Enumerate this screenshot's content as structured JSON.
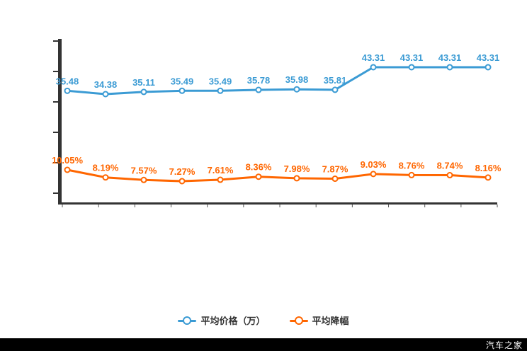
{
  "watermark": {
    "brand": "汽车之家"
  },
  "legend": [
    {
      "label": "平均价格（万）",
      "color": "#3b9bd4"
    },
    {
      "label": "平均降幅",
      "color": "#ff6600"
    }
  ],
  "chart_data": {
    "type": "line",
    "title": "",
    "xlabel": "",
    "ylabel": "",
    "x_point_count": 12,
    "x_tick_labels": [
      "",
      "",
      "",
      "",
      "",
      "",
      "",
      "",
      "",
      "",
      "",
      ""
    ],
    "grid": false,
    "legend_position": "bottom",
    "axis_color": "#333333",
    "series": [
      {
        "name": "平均价格（万）",
        "color": "#3b9bd4",
        "unit": "万",
        "label_suffix": "",
        "values": [
          35.48,
          34.38,
          35.11,
          35.49,
          35.49,
          35.78,
          35.98,
          35.81,
          43.31,
          43.31,
          43.31,
          43.31
        ]
      },
      {
        "name": "平均降幅",
        "color": "#ff6600",
        "unit": "%",
        "label_suffix": "%",
        "values": [
          10.05,
          8.19,
          7.57,
          7.27,
          7.61,
          8.36,
          7.98,
          7.87,
          9.03,
          8.76,
          8.74,
          8.16
        ]
      }
    ]
  }
}
